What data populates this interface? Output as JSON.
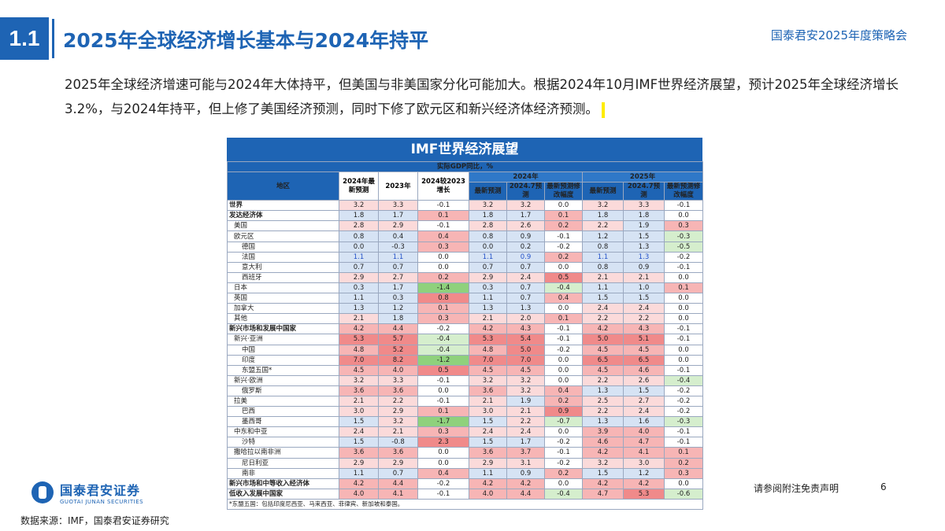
{
  "section_no": "1.1",
  "title": "2025年全球经济增长基本与2024年持平",
  "conference": "国泰君安2025年度策略会",
  "paragraph": "2025年全球经济增速可能与2024年大体持平，但美国与非美国家分化可能加大。根据2024年10月IMF世界经济展望，预计2025年全球经济增长3.2%，与2024年持平，但上修了美国经济预测，同时下修了欧元区和新兴经济体经济预测。",
  "table": {
    "title": "IMF世界经济展望",
    "unit": "实际GDP同比，%",
    "col_region": "地区",
    "col_2024_latest": "2024年最新预测",
    "col_2023": "2023年",
    "col_diff": "2024较2023增长",
    "year_2024": "2024年",
    "year_2025": "2025年",
    "sub_latest": "最新预测",
    "sub_july": "2024.7预测",
    "sub_rev": "最新预测修改幅度",
    "rows": [
      {
        "name": "世界",
        "v": [
          "3.2",
          "3.3",
          "-0.1",
          "3.2",
          "3.2",
          "0.0",
          "3.2",
          "3.3",
          "-0.1"
        ]
      },
      {
        "name": "发达经济体",
        "v": [
          "1.8",
          "1.7",
          "0.1",
          "1.8",
          "1.7",
          "0.1",
          "1.8",
          "1.8",
          "0.0"
        ]
      },
      {
        "name": "美国",
        "v": [
          "2.8",
          "2.9",
          "-0.1",
          "2.8",
          "2.6",
          "0.2",
          "2.2",
          "1.9",
          "0.3"
        ]
      },
      {
        "name": "欧元区",
        "v": [
          "0.8",
          "0.4",
          "0.4",
          "0.8",
          "0.9",
          "-0.1",
          "1.2",
          "1.5",
          "-0.3"
        ]
      },
      {
        "name": "德国",
        "v": [
          "0.0",
          "-0.3",
          "0.3",
          "0.0",
          "0.2",
          "-0.2",
          "0.8",
          "1.3",
          "-0.5"
        ]
      },
      {
        "name": "法国",
        "v": [
          "1.1",
          "1.1",
          "0.0",
          "1.1",
          "0.9",
          "0.2",
          "1.1",
          "1.3",
          "-0.2"
        ]
      },
      {
        "name": "意大利",
        "v": [
          "0.7",
          "0.7",
          "0.0",
          "0.7",
          "0.7",
          "0.0",
          "0.8",
          "0.9",
          "-0.1"
        ]
      },
      {
        "name": "西班牙",
        "v": [
          "2.9",
          "2.7",
          "0.2",
          "2.9",
          "2.4",
          "0.5",
          "2.1",
          "2.1",
          "0.0"
        ]
      },
      {
        "name": "日本",
        "v": [
          "0.3",
          "1.7",
          "-1.4",
          "0.3",
          "0.7",
          "-0.4",
          "1.1",
          "1.0",
          "0.1"
        ]
      },
      {
        "name": "英国",
        "v": [
          "1.1",
          "0.3",
          "0.8",
          "1.1",
          "0.7",
          "0.4",
          "1.5",
          "1.5",
          "0.0"
        ]
      },
      {
        "name": "加拿大",
        "v": [
          "1.3",
          "1.2",
          "0.1",
          "1.3",
          "1.3",
          "0.0",
          "2.4",
          "2.4",
          "0.0"
        ]
      },
      {
        "name": "其他",
        "v": [
          "2.1",
          "1.8",
          "0.3",
          "2.1",
          "2.0",
          "0.1",
          "2.2",
          "2.2",
          "0.0"
        ]
      },
      {
        "name": "新兴市场和发展中国家",
        "v": [
          "4.2",
          "4.4",
          "-0.2",
          "4.2",
          "4.3",
          "-0.1",
          "4.2",
          "4.3",
          "-0.1"
        ]
      },
      {
        "name": "新兴·亚洲",
        "v": [
          "5.3",
          "5.7",
          "-0.4",
          "5.3",
          "5.4",
          "-0.1",
          "5.0",
          "5.1",
          "-0.1"
        ]
      },
      {
        "name": "中国",
        "v": [
          "4.8",
          "5.2",
          "-0.4",
          "4.8",
          "5.0",
          "-0.2",
          "4.5",
          "4.5",
          "0.0"
        ]
      },
      {
        "name": "印度",
        "v": [
          "7.0",
          "8.2",
          "-1.2",
          "7.0",
          "7.0",
          "0.0",
          "6.5",
          "6.5",
          "0.0"
        ]
      },
      {
        "name": "东盟五国*",
        "v": [
          "4.5",
          "4.0",
          "0.5",
          "4.5",
          "4.5",
          "0.0",
          "4.5",
          "4.6",
          "-0.1"
        ]
      },
      {
        "name": "新兴·欧洲",
        "v": [
          "3.2",
          "3.3",
          "-0.1",
          "3.2",
          "3.2",
          "0.0",
          "2.2",
          "2.6",
          "-0.4"
        ]
      },
      {
        "name": "俄罗斯",
        "v": [
          "3.6",
          "3.6",
          "0.0",
          "3.6",
          "3.2",
          "0.4",
          "1.3",
          "1.5",
          "-0.2"
        ]
      },
      {
        "name": "拉美",
        "v": [
          "2.1",
          "2.2",
          "-0.1",
          "2.1",
          "1.9",
          "0.2",
          "2.5",
          "2.7",
          "-0.2"
        ]
      },
      {
        "name": "巴西",
        "v": [
          "3.0",
          "2.9",
          "0.1",
          "3.0",
          "2.1",
          "0.9",
          "2.2",
          "2.4",
          "-0.2"
        ]
      },
      {
        "name": "墨西哥",
        "v": [
          "1.5",
          "3.2",
          "-1.7",
          "1.5",
          "2.2",
          "-0.7",
          "1.3",
          "1.6",
          "-0.3"
        ]
      },
      {
        "name": "中东和中亚",
        "v": [
          "2.4",
          "2.1",
          "0.3",
          "2.4",
          "2.4",
          "0.0",
          "3.9",
          "4.0",
          "-0.1"
        ]
      },
      {
        "name": "沙特",
        "v": [
          "1.5",
          "-0.8",
          "2.3",
          "1.5",
          "1.7",
          "-0.2",
          "4.6",
          "4.7",
          "-0.1"
        ]
      },
      {
        "name": "撒哈拉以南非洲",
        "v": [
          "3.6",
          "3.6",
          "0.0",
          "3.6",
          "3.7",
          "-0.1",
          "4.2",
          "4.1",
          "0.1"
        ]
      },
      {
        "name": "尼日利亚",
        "v": [
          "2.9",
          "2.9",
          "0.0",
          "2.9",
          "3.1",
          "-0.2",
          "3.2",
          "3.0",
          "0.2"
        ]
      },
      {
        "name": "南非",
        "v": [
          "1.1",
          "0.7",
          "0.4",
          "1.1",
          "0.9",
          "0.2",
          "1.5",
          "1.2",
          "0.3"
        ]
      },
      {
        "name": "新兴市场和中等收入经济体",
        "v": [
          "4.2",
          "4.4",
          "-0.2",
          "4.2",
          "4.2",
          "0.0",
          "4.2",
          "4.2",
          "0.0"
        ]
      },
      {
        "name": "低收入发展中国家",
        "v": [
          "4.0",
          "4.1",
          "-0.1",
          "4.0",
          "4.4",
          "-0.4",
          "4.7",
          "5.3",
          "-0.6"
        ]
      }
    ],
    "footnote": "*东盟五国：包括印度尼西亚、马来西亚、菲律宾、新加坡和泰国。"
  },
  "logo_cn": "国泰君安证券",
  "logo_en": "GUOTAI JUNAN SECURITIES",
  "disclaimer": "请参阅附注免责声明",
  "page_number": "6",
  "source": "数据来源：IMF，国泰君安证券研究"
}
